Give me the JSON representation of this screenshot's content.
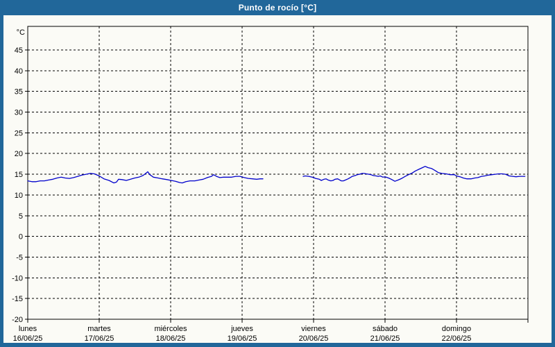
{
  "window": {
    "title": "Punto de rocío [°C]"
  },
  "colors": {
    "frame": "#21679a",
    "background": "#fbfbf6",
    "plot_border": "#000000",
    "grid": "#000000",
    "line": "#0000cc",
    "title_text": "#ffffff",
    "tick_text": "#000000"
  },
  "chart_data": {
    "type": "line",
    "title": "Punto de rocío [°C]",
    "y_unit_label": "°C",
    "x_unit": "hours since lunes 16/06/25 00:00",
    "xlim": [
      0,
      168
    ],
    "ylim": [
      -20,
      50.7
    ],
    "y_ticks": [
      45,
      40,
      35,
      30,
      25,
      20,
      15,
      10,
      5,
      0,
      -5,
      -10,
      -15,
      -20
    ],
    "x_ticks": [
      {
        "hour": 0,
        "day": "lunes",
        "date": "16/06/25"
      },
      {
        "hour": 24,
        "day": "martes",
        "date": "17/06/25"
      },
      {
        "hour": 48,
        "day": "miércoles",
        "date": "18/06/25"
      },
      {
        "hour": 72,
        "day": "jueves",
        "date": "19/06/25"
      },
      {
        "hour": 96,
        "day": "viernes",
        "date": "20/06/25"
      },
      {
        "hour": 120,
        "day": "sábado",
        "date": "21/06/25"
      },
      {
        "hour": 144,
        "day": "domingo",
        "date": "22/06/25"
      },
      {
        "hour": 168
      }
    ],
    "grid": "dashed",
    "legend": "none",
    "gap_note": "no data between ~hour 79 (jueves) and ~hour 92.5 (jueves night)",
    "series": [
      {
        "name": "Punto de rocío",
        "color": "#0000cc",
        "segments": [
          [
            [
              0,
              13.4
            ],
            [
              1.4,
              13.2
            ],
            [
              2.8,
              13.2
            ],
            [
              4.2,
              13.4
            ],
            [
              5.6,
              13.4
            ],
            [
              7,
              13.6
            ],
            [
              8.4,
              13.8
            ],
            [
              9.8,
              14.1
            ],
            [
              11.2,
              14.3
            ],
            [
              12.6,
              14.1
            ],
            [
              14,
              14.0
            ],
            [
              15.4,
              14.2
            ],
            [
              16.8,
              14.5
            ],
            [
              18.2,
              14.8
            ],
            [
              19.6,
              15.0
            ],
            [
              21,
              15.2
            ],
            [
              22.4,
              15.1
            ],
            [
              24,
              14.6
            ],
            [
              25.6,
              13.9
            ],
            [
              27.3,
              13.5
            ],
            [
              28.9,
              12.9
            ],
            [
              29.8,
              13.1
            ],
            [
              30.5,
              13.8
            ],
            [
              31.7,
              13.7
            ],
            [
              33.1,
              13.5
            ],
            [
              34.5,
              13.8
            ],
            [
              35.9,
              14.1
            ],
            [
              37.3,
              14.3
            ],
            [
              38.7,
              14.7
            ],
            [
              39.8,
              15.3
            ],
            [
              40.3,
              15.6
            ],
            [
              41,
              14.9
            ],
            [
              42.2,
              14.3
            ],
            [
              43.8,
              14.1
            ],
            [
              45.2,
              13.9
            ],
            [
              46.8,
              13.7
            ],
            [
              48.2,
              13.5
            ],
            [
              49.6,
              13.3
            ],
            [
              51,
              13.0
            ],
            [
              51.9,
              12.9
            ],
            [
              53.1,
              13.2
            ],
            [
              54.5,
              13.4
            ],
            [
              56.1,
              13.4
            ],
            [
              57.5,
              13.6
            ],
            [
              58.9,
              13.8
            ],
            [
              60.3,
              14.2
            ],
            [
              61.7,
              14.5
            ],
            [
              62.4,
              14.9
            ],
            [
              63.4,
              14.5
            ],
            [
              64.5,
              14.2
            ],
            [
              65.7,
              14.3
            ],
            [
              67.1,
              14.3
            ],
            [
              68.5,
              14.3
            ],
            [
              69.9,
              14.5
            ],
            [
              71.3,
              14.5
            ],
            [
              72.7,
              14.2
            ],
            [
              74.1,
              14.0
            ],
            [
              75.5,
              13.9
            ],
            [
              76.9,
              13.8
            ],
            [
              78,
              13.9
            ],
            [
              79,
              13.9
            ]
          ],
          [
            [
              92.5,
              14.5
            ],
            [
              93.2,
              14.6
            ],
            [
              94.4,
              14.5
            ],
            [
              95.5,
              14.3
            ],
            [
              96,
              14.2
            ],
            [
              96.7,
              14.0
            ],
            [
              97.9,
              13.8
            ],
            [
              98.6,
              13.5
            ],
            [
              99.5,
              13.8
            ],
            [
              100.2,
              13.9
            ],
            [
              100.9,
              13.6
            ],
            [
              101.8,
              13.4
            ],
            [
              102.5,
              13.5
            ],
            [
              103.2,
              13.8
            ],
            [
              104.1,
              13.9
            ],
            [
              105.3,
              13.4
            ],
            [
              106,
              13.4
            ],
            [
              106.7,
              13.6
            ],
            [
              107.6,
              13.9
            ],
            [
              108.3,
              14.2
            ],
            [
              109,
              14.5
            ],
            [
              110,
              14.7
            ],
            [
              110.7,
              14.9
            ],
            [
              111.4,
              15.0
            ],
            [
              112.3,
              15.2
            ],
            [
              113,
              15.2
            ],
            [
              113.7,
              15.1
            ],
            [
              114.6,
              15.0
            ],
            [
              115.3,
              14.9
            ],
            [
              116,
              14.7
            ],
            [
              117,
              14.6
            ],
            [
              117.7,
              14.5
            ],
            [
              118.4,
              14.6
            ],
            [
              119.3,
              14.3
            ],
            [
              120,
              14.4
            ],
            [
              121.2,
              14.1
            ],
            [
              122.1,
              13.8
            ],
            [
              123.3,
              13.3
            ],
            [
              124.4,
              13.6
            ],
            [
              125.6,
              14.0
            ],
            [
              126.8,
              14.5
            ],
            [
              127.9,
              14.9
            ],
            [
              129.1,
              15.3
            ],
            [
              130.2,
              15.8
            ],
            [
              131.4,
              16.2
            ],
            [
              132.6,
              16.6
            ],
            [
              133.5,
              16.9
            ],
            [
              134.4,
              16.6
            ],
            [
              135.6,
              16.4
            ],
            [
              136.8,
              15.9
            ],
            [
              137.9,
              15.4
            ],
            [
              139.1,
              15.2
            ],
            [
              140.5,
              15.1
            ],
            [
              141.9,
              14.9
            ],
            [
              143.3,
              14.9
            ],
            [
              144,
              14.6
            ],
            [
              145.2,
              14.4
            ],
            [
              146.3,
              14.1
            ],
            [
              147.5,
              13.9
            ],
            [
              148.9,
              13.9
            ],
            [
              150.1,
              14.1
            ],
            [
              151.2,
              14.2
            ],
            [
              152.4,
              14.5
            ],
            [
              153.5,
              14.6
            ],
            [
              154.7,
              14.8
            ],
            [
              155.9,
              14.9
            ],
            [
              157,
              15.0
            ],
            [
              158.2,
              15.1
            ],
            [
              159.4,
              15.1
            ],
            [
              160.5,
              15.0
            ],
            [
              161.7,
              14.6
            ],
            [
              162.9,
              14.5
            ],
            [
              164,
              14.4
            ],
            [
              165.2,
              14.5
            ],
            [
              167,
              14.5
            ]
          ]
        ]
      }
    ]
  }
}
